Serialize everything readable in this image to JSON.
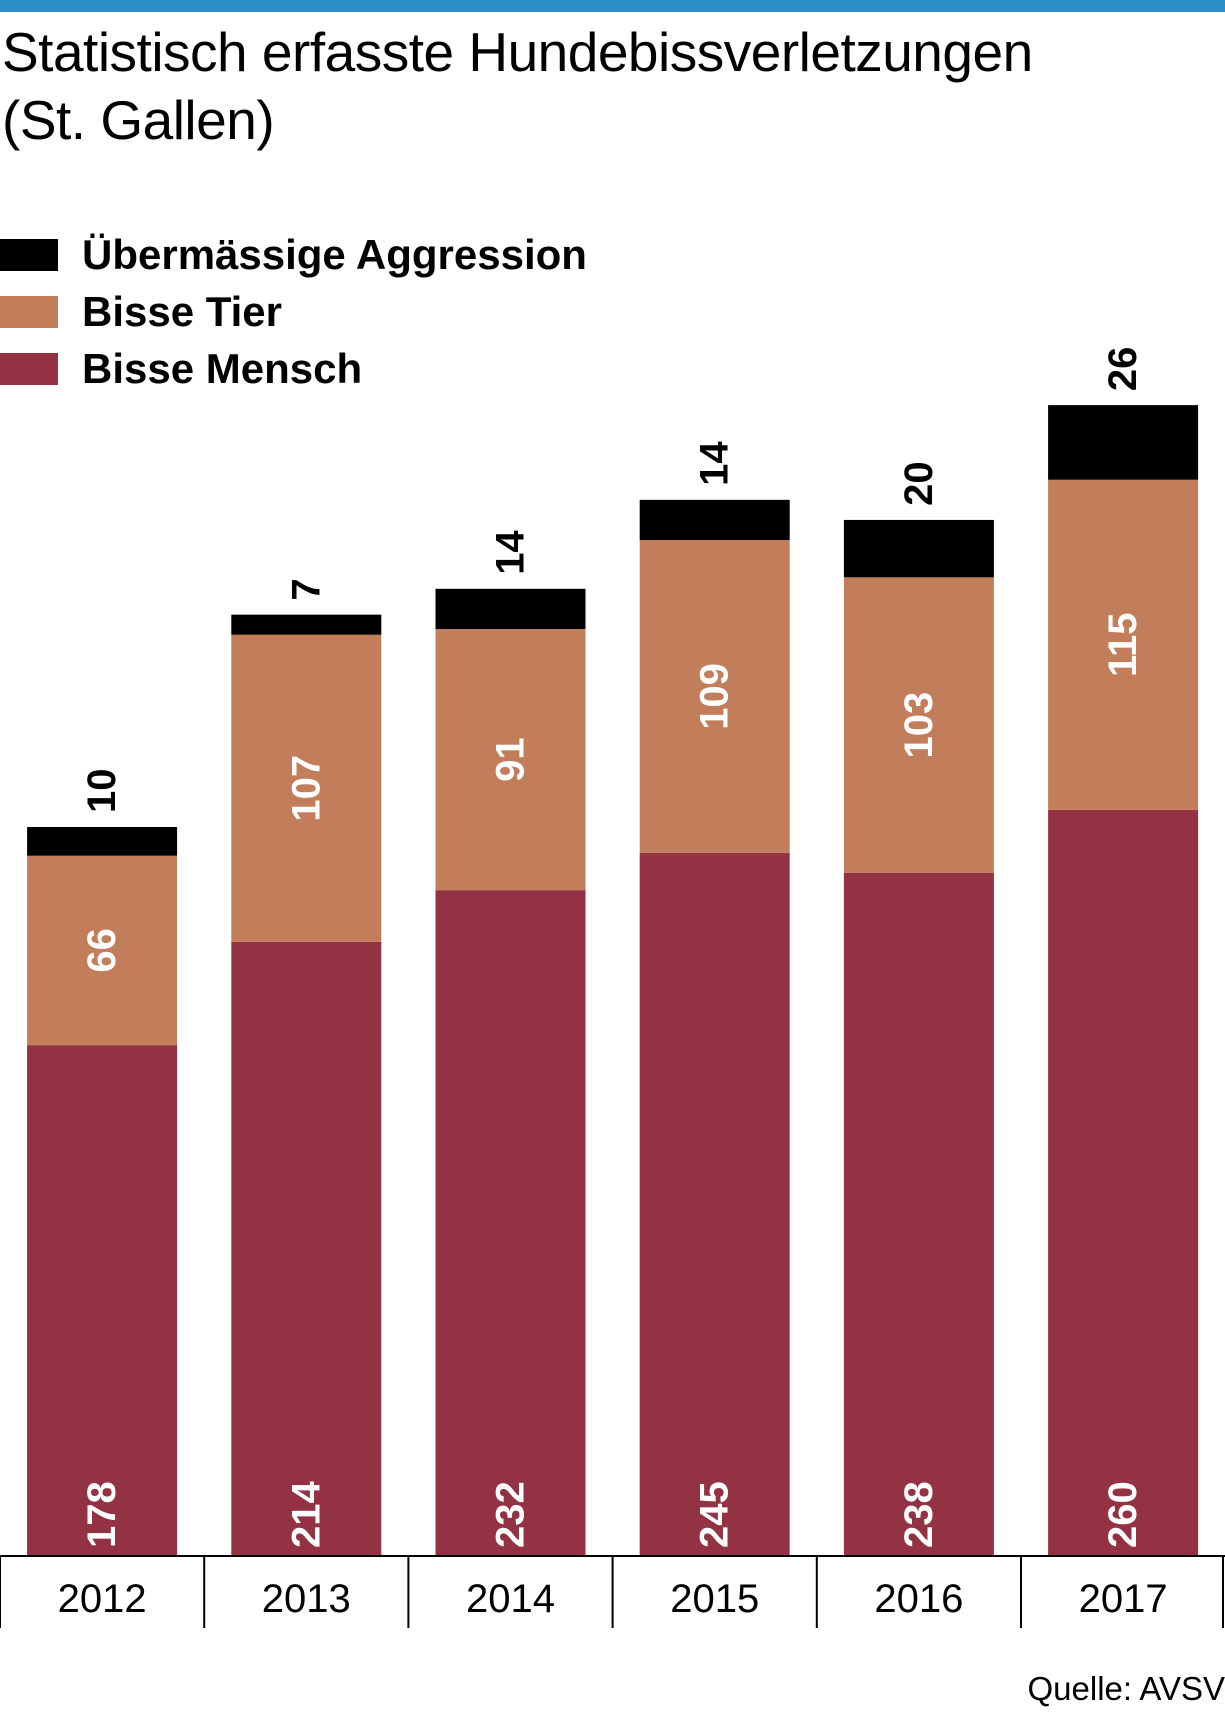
{
  "title_line1": "Statistisch erfasste Hundebissverletzungen",
  "title_line2": "(St. Gallen)",
  "source": "Quelle: AVSV",
  "colors": {
    "topbar": "#2a8fc4",
    "mensch": "#923242",
    "tier": "#c27d5b",
    "aggression": "#000000",
    "white": "#ffffff"
  },
  "chart_data": {
    "type": "bar",
    "stacked": true,
    "categories": [
      "2012",
      "2013",
      "2014",
      "2015",
      "2016",
      "2017"
    ],
    "series": [
      {
        "name": "Bisse Mensch",
        "color": "#923242",
        "label_position": "bottom",
        "values": [
          178,
          214,
          232,
          245,
          238,
          260
        ]
      },
      {
        "name": "Bisse Tier",
        "color": "#c27d5b",
        "label_position": "middle",
        "values": [
          66,
          107,
          91,
          109,
          103,
          115
        ]
      },
      {
        "name": "Übermässige Aggression",
        "color": "#000000",
        "label_position": "above",
        "values": [
          10,
          7,
          14,
          14,
          20,
          26
        ]
      }
    ],
    "legend": [
      "Übermässige Aggression",
      "Bisse Tier",
      "Bisse Mensch"
    ],
    "legend_position": "top-left",
    "title": "Statistisch erfasste Hundebissverletzungen (St. Gallen)",
    "xlabel": "",
    "ylabel": "",
    "grid": false
  }
}
